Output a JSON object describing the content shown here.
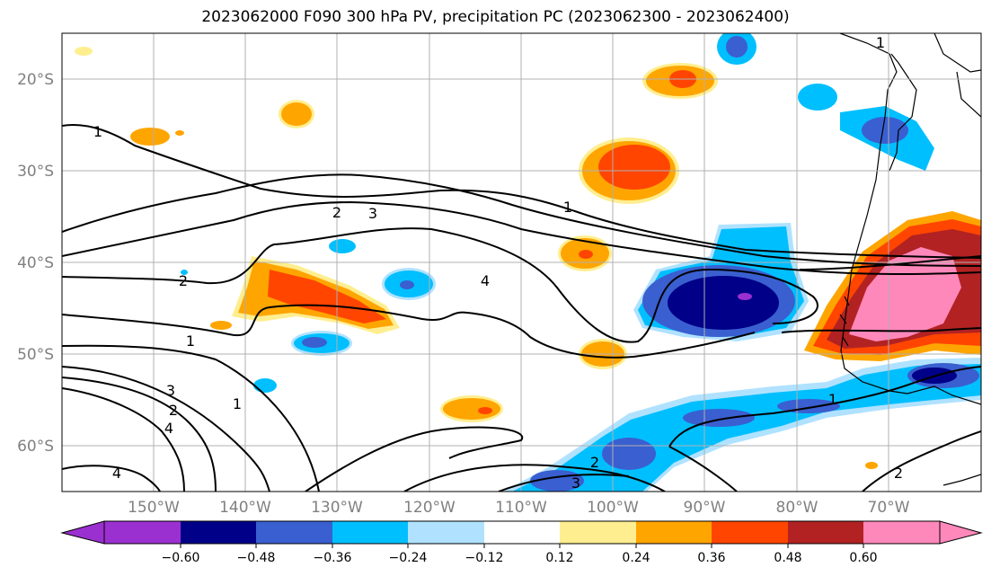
{
  "title": "2023062000 F090 300 hPa PV, precipitation PC (2023062300 - 2023062400)",
  "lat_labels": [
    "20°S",
    "30°S",
    "40°S",
    "50°S",
    "60°S"
  ],
  "lon_labels": [
    "150°W",
    "140°W",
    "130°W",
    "120°W",
    "110°W",
    "100°W",
    "90°W",
    "80°W",
    "70°W"
  ],
  "colorbar": {
    "ticks": [
      "−0.60",
      "−0.48",
      "−0.36",
      "−0.24",
      "−0.12",
      "0.12",
      "0.24",
      "0.36",
      "0.48",
      "0.60"
    ],
    "colors": [
      "#9b30d0",
      "#000088",
      "#3a5fd0",
      "#00bfff",
      "#b0e2ff",
      "#ffffff",
      "#ffee90",
      "#ffa500",
      "#ff4500",
      "#b22222",
      "#ff88bb"
    ]
  },
  "contour_labels": [
    "1",
    "2",
    "3",
    "4",
    "1",
    "2",
    "3",
    "1",
    "4",
    "2",
    "1",
    "2",
    "3",
    "4",
    "4",
    "1",
    "1",
    "2",
    "3",
    "2",
    "1"
  ]
}
